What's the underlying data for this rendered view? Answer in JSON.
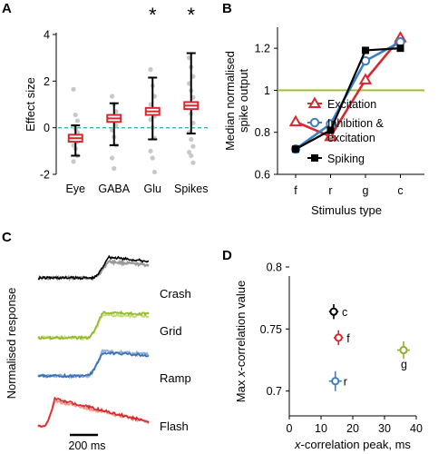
{
  "panels": [
    {
      "letter": "A",
      "chart_data": {
        "type": "box",
        "categories": [
          "Eye",
          "GABA",
          "Glu",
          "Spikes"
        ],
        "ylabel": "Effect size",
        "ylim": [
          -2,
          4
        ],
        "yticks": [
          -2,
          0,
          2,
          4
        ],
        "reference_line": {
          "y": 0,
          "style": "dashed",
          "color": "#29b6d6"
        },
        "significance": [
          "",
          "",
          "*",
          "*"
        ],
        "boxes": [
          {
            "category": "Eye",
            "median": -0.45,
            "q1": -0.6,
            "q3": -0.3,
            "whisker_low": -1.2,
            "whisker_high": 0.1
          },
          {
            "category": "GABA",
            "median": 0.4,
            "q1": 0.25,
            "q3": 0.55,
            "whisker_low": -0.75,
            "whisker_high": 1.05
          },
          {
            "category": "Glu",
            "median": 0.7,
            "q1": 0.55,
            "q3": 0.85,
            "whisker_low": -0.5,
            "whisker_high": 2.15
          },
          {
            "category": "Spikes",
            "median": 0.95,
            "q1": 0.8,
            "q3": 1.1,
            "whisker_low": -0.25,
            "whisker_high": 3.2
          }
        ],
        "points": [
          {
            "category": "Eye",
            "values": [
              1.65,
              0.55,
              0.3,
              0.05,
              -0.05,
              -0.2,
              -0.35,
              -0.45,
              -0.6,
              -0.75,
              -0.9,
              -1.2,
              -1.45
            ]
          },
          {
            "category": "GABA",
            "values": [
              1.35,
              1.0,
              0.7,
              0.45,
              0.3,
              0.1,
              -0.1,
              -0.4,
              -0.75,
              -1.3,
              -1.75
            ]
          },
          {
            "category": "Glu",
            "values": [
              2.5,
              1.8,
              1.35,
              1.0,
              0.75,
              0.5,
              0.35,
              0.0,
              -0.45,
              -1.0,
              -1.3,
              -1.9
            ]
          },
          {
            "category": "Spikes",
            "values": [
              3.0,
              2.6,
              2.2,
              1.9,
              1.6,
              1.3,
              0.9,
              0.6,
              0.2,
              -0.2,
              -0.5,
              -0.8,
              -1.05,
              -1.2,
              -1.5
            ]
          }
        ],
        "colors": {
          "box": "#d7282e",
          "whisker": "#000000",
          "points": "#c8c8c8"
        }
      }
    },
    {
      "letter": "B",
      "chart_data": {
        "type": "line",
        "categories": [
          "f",
          "r",
          "g",
          "c"
        ],
        "xlabel": "Stimulus type",
        "ylabel": "Median normalised spike output",
        "ylabel_lines": [
          "Median normalised",
          "spike output"
        ],
        "ylim": [
          0.6,
          1.3
        ],
        "yticks": [
          "0.6",
          "0.8",
          "1",
          "1.2"
        ],
        "reference_line": {
          "y": 1.0,
          "color": "#9bbb2b"
        },
        "series": [
          {
            "name": "Excitation",
            "legend_lines": [
              "Excitation"
            ],
            "marker": "triangle-open",
            "color": "#d7282e",
            "values": [
              0.85,
              0.78,
              1.05,
              1.25
            ]
          },
          {
            "name": "Inhibition & excitation",
            "legend_lines": [
              "Inhibition &",
              "excitation"
            ],
            "marker": "circle-open",
            "color": "#3a7fc1",
            "values": [
              0.72,
              0.84,
              1.14,
              1.23
            ]
          },
          {
            "name": "Spiking",
            "legend_lines": [
              "Spiking"
            ],
            "marker": "square-filled",
            "color": "#000000",
            "values": [
              0.72,
              0.81,
              1.19,
              1.2
            ]
          }
        ]
      }
    },
    {
      "letter": "C",
      "chart_data": {
        "type": "line",
        "ylabel": "Normalised response",
        "scale_bar": "200 ms",
        "series": [
          {
            "name": "Crash",
            "color": "#000000",
            "color_light": "#9a9a9a",
            "onset": 0.5,
            "peak_pos": 0.63,
            "decay": 0.22,
            "amp_dark": 1.0,
            "amp_light": 0.78
          },
          {
            "name": "Grid",
            "color": "#93b82a",
            "color_light": "#c8dd7f",
            "onset": 0.45,
            "peak_pos": 0.58,
            "decay": 0.06,
            "amp_dark": 1.0,
            "amp_light": 0.9
          },
          {
            "name": "Ramp",
            "color": "#3a6fb5",
            "color_light": "#8fb0d8",
            "onset": 0.45,
            "peak_pos": 0.58,
            "decay": 0.12,
            "amp_dark": 0.95,
            "amp_light": 1.0
          },
          {
            "name": "Flash",
            "color": "#d7282e",
            "color_light": "#ee9a8c",
            "onset": 0.06,
            "peak_pos": 0.15,
            "decay": 0.85,
            "amp_dark": 1.0,
            "amp_light": 0.92
          }
        ]
      }
    },
    {
      "letter": "D",
      "chart_data": {
        "type": "scatter",
        "xlabel_italic": "x",
        "xlabel_rest": "-correlation peak, ms",
        "ylabel_pre": "Max ",
        "ylabel_italic": "x",
        "ylabel_rest": "-correlation value",
        "xlim": [
          0,
          40
        ],
        "ylim": [
          0.68,
          0.8
        ],
        "xticks": [
          "0",
          "10",
          "20",
          "30",
          "40"
        ],
        "yticks": [
          "0.7",
          "0.75",
          "0.8"
        ],
        "points": [
          {
            "label": "c",
            "x": 14,
            "y": 0.764,
            "xerr": 1.5,
            "yerr": 0.006,
            "color": "#000000"
          },
          {
            "label": "f",
            "x": 15.5,
            "y": 0.743,
            "xerr": 1.5,
            "yerr": 0.006,
            "color": "#d7282e"
          },
          {
            "label": "r",
            "x": 14.5,
            "y": 0.708,
            "xerr": 2,
            "yerr": 0.008,
            "color": "#3a7fc1"
          },
          {
            "label": "g",
            "x": 36,
            "y": 0.733,
            "xerr": 2,
            "yerr": 0.007,
            "color": "#8db32c"
          }
        ]
      }
    }
  ]
}
